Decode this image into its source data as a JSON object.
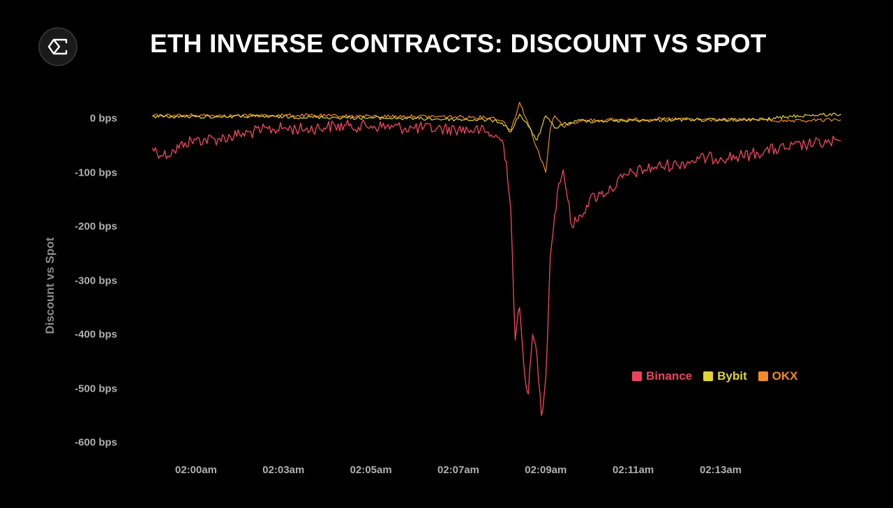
{
  "header": {
    "title": "ETH INVERSE CONTRACTS: DISCOUNT VS SPOT"
  },
  "icons": {
    "logo": "sigma-logo-icon"
  },
  "colors": {
    "background": "#000000",
    "binance": "#e8455c",
    "bybit": "#e0d23a",
    "okx": "#f08a2a"
  },
  "chart_data": {
    "type": "line",
    "title": "ETH INVERSE CONTRACTS: DISCOUNT VS SPOT",
    "xlabel": "",
    "ylabel": "Discount vs Spot",
    "ylim": [
      -600,
      0
    ],
    "y_ticks": [
      "0 bps",
      "-100 bps",
      "-200 bps",
      "-300 bps",
      "-400 bps",
      "-500 bps",
      "-600 bps"
    ],
    "y_tick_values": [
      0,
      -100,
      -200,
      -300,
      -400,
      -500,
      -600
    ],
    "x_ticks": [
      "02:00am",
      "02:03am",
      "02:05am",
      "02:07am",
      "02:09am",
      "02:11am",
      "02:13am"
    ],
    "x_tick_values": [
      "02:00",
      "02:02",
      "02:04",
      "02:06",
      "02:08",
      "02:10",
      "02:12"
    ],
    "grid": false,
    "legend_position": "bottom-right",
    "series": [
      {
        "name": "Binance",
        "x": [
          "01:59:00",
          "01:59:15",
          "01:59:30",
          "01:59:45",
          "02:00:00",
          "02:00:30",
          "02:01:00",
          "02:01:30",
          "02:02:00",
          "02:02:30",
          "02:03:00",
          "02:03:30",
          "02:04:00",
          "02:04:30",
          "02:05:00",
          "02:05:30",
          "02:06:00",
          "02:06:30",
          "02:06:45",
          "02:07:00",
          "02:07:06",
          "02:07:12",
          "02:07:18",
          "02:07:24",
          "02:07:30",
          "02:07:36",
          "02:07:42",
          "02:07:48",
          "02:07:54",
          "02:08:00",
          "02:08:06",
          "02:08:12",
          "02:08:18",
          "02:08:24",
          "02:08:30",
          "02:08:36",
          "02:08:42",
          "02:08:48",
          "02:09:00",
          "02:09:15",
          "02:09:30",
          "02:09:45",
          "02:10:00",
          "02:10:30",
          "02:11:00",
          "02:11:30",
          "02:12:00",
          "02:12:30",
          "02:13:00",
          "02:13:30",
          "02:14:00",
          "02:14:30",
          "02:14:45"
        ],
        "values": [
          -55,
          -68,
          -60,
          -45,
          -40,
          -38,
          -30,
          -22,
          -18,
          -20,
          -15,
          -14,
          -14,
          -16,
          -18,
          -19,
          -20,
          -22,
          -30,
          -40,
          -80,
          -170,
          -410,
          -350,
          -460,
          -510,
          -400,
          -440,
          -550,
          -480,
          -260,
          -180,
          -120,
          -95,
          -150,
          -200,
          -190,
          -180,
          -150,
          -140,
          -130,
          -110,
          -100,
          -90,
          -85,
          -75,
          -72,
          -70,
          -60,
          -55,
          -48,
          -45,
          -42
        ]
      },
      {
        "name": "Bybit",
        "x": [
          "01:59:00",
          "02:00:00",
          "02:01:00",
          "02:02:00",
          "02:03:00",
          "02:04:00",
          "02:05:00",
          "02:06:00",
          "02:06:45",
          "02:07:00",
          "02:07:12",
          "02:07:24",
          "02:07:36",
          "02:07:48",
          "02:08:00",
          "02:08:12",
          "02:08:24",
          "02:08:36",
          "02:08:48",
          "02:09:00",
          "02:10:00",
          "02:11:00",
          "02:12:00",
          "02:13:00",
          "02:13:30",
          "02:14:00",
          "02:14:45"
        ],
        "values": [
          4,
          3,
          4,
          3,
          2,
          1,
          0,
          -2,
          -3,
          -8,
          -25,
          8,
          -15,
          -40,
          5,
          -18,
          -10,
          -8,
          -3,
          -5,
          -4,
          -2,
          -3,
          -2,
          3,
          6,
          8
        ]
      },
      {
        "name": "OKX",
        "x": [
          "01:59:00",
          "02:00:00",
          "02:01:00",
          "02:02:00",
          "02:03:00",
          "02:04:00",
          "02:05:00",
          "02:06:00",
          "02:06:45",
          "02:07:00",
          "02:07:12",
          "02:07:24",
          "02:07:36",
          "02:07:48",
          "02:08:00",
          "02:08:06",
          "02:08:12",
          "02:08:24",
          "02:08:36",
          "02:08:48",
          "02:09:00",
          "02:10:00",
          "02:11:00",
          "02:12:00",
          "02:13:00",
          "02:13:30",
          "02:14:00",
          "02:14:45"
        ],
        "values": [
          5,
          6,
          5,
          6,
          5,
          4,
          4,
          3,
          2,
          -4,
          -22,
          30,
          -10,
          -55,
          -100,
          -20,
          5,
          -15,
          -8,
          -5,
          -3,
          -2,
          -1,
          -3,
          -2,
          -6,
          -4,
          -2
        ]
      }
    ]
  }
}
